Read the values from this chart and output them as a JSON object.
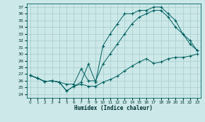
{
  "xlabel": "Humidex (Indice chaleur)",
  "bg_color": "#cce8e8",
  "grid_color": "#a8cccc",
  "line_color": "#006060",
  "text_color": "#003030",
  "xlim": [
    -0.5,
    23.5
  ],
  "ylim": [
    23.5,
    37.5
  ],
  "xticks": [
    0,
    1,
    2,
    3,
    4,
    5,
    6,
    7,
    8,
    9,
    10,
    11,
    12,
    13,
    14,
    15,
    16,
    17,
    18,
    19,
    20,
    21,
    22,
    23
  ],
  "yticks": [
    24,
    25,
    26,
    27,
    28,
    29,
    30,
    31,
    32,
    33,
    34,
    35,
    36,
    37
  ],
  "curve_bottom_x": [
    0,
    1,
    2,
    3,
    4,
    5,
    6,
    7,
    8,
    9,
    10,
    11,
    12,
    13,
    14,
    15,
    16,
    17,
    18,
    19,
    20,
    21,
    22,
    23
  ],
  "curve_bottom_y": [
    26.8,
    26.4,
    25.9,
    26.0,
    25.8,
    24.5,
    25.2,
    25.5,
    25.2,
    25.2,
    25.8,
    26.2,
    26.7,
    27.5,
    28.2,
    28.8,
    29.3,
    28.6,
    28.8,
    29.3,
    29.5,
    29.5,
    29.7,
    30.0
  ],
  "curve_top_x": [
    0,
    1,
    2,
    3,
    4,
    5,
    6,
    7,
    8,
    9,
    10,
    11,
    12,
    13,
    14,
    15,
    16,
    17,
    18,
    19,
    20,
    21,
    22,
    23
  ],
  "curve_top_y": [
    26.8,
    26.4,
    25.9,
    26.0,
    25.8,
    24.5,
    25.2,
    25.8,
    28.5,
    25.8,
    31.2,
    33.0,
    34.5,
    36.0,
    36.0,
    36.5,
    36.5,
    37.0,
    37.0,
    36.0,
    35.0,
    33.0,
    31.5,
    30.5
  ],
  "curve_mid_x": [
    0,
    1,
    2,
    3,
    4,
    5,
    6,
    7,
    8,
    9,
    10,
    11,
    12,
    13,
    14,
    15,
    16,
    17,
    18,
    19,
    20,
    21,
    22,
    23
  ],
  "curve_mid_y": [
    26.8,
    26.4,
    25.9,
    26.0,
    25.8,
    25.5,
    25.5,
    27.8,
    26.0,
    26.0,
    28.5,
    30.0,
    31.5,
    33.0,
    34.5,
    35.5,
    36.0,
    36.5,
    36.5,
    35.5,
    34.0,
    33.0,
    32.0,
    30.5
  ]
}
